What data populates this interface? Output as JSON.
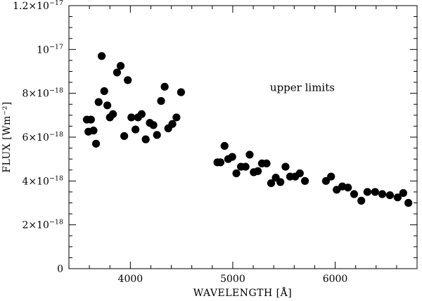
{
  "chart_data": {
    "type": "scatter",
    "title": "",
    "xlabel": "WAVELENGTH [Å]",
    "ylabel": "FLUX [Wm⁻²]",
    "xlim": [
      3400,
      6800
    ],
    "ylim": [
      0,
      1.2e-17
    ],
    "x_major_ticks": [
      4000,
      5000,
      6000
    ],
    "x_minor_step": 200,
    "y_major_ticks": [
      0,
      2e-18,
      4e-18,
      6e-18,
      8e-18,
      1e-17,
      1.2e-17
    ],
    "y_minor_step": 5e-19,
    "x_tick_labels": [
      "4000",
      "5000",
      "6000"
    ],
    "y_tick_labels": [
      {
        "mant": "0",
        "exp": ""
      },
      {
        "mant": "2×10",
        "exp": "−18"
      },
      {
        "mant": "4×10",
        "exp": "−18"
      },
      {
        "mant": "6×10",
        "exp": "−18"
      },
      {
        "mant": "8×10",
        "exp": "−18"
      },
      {
        "mant": "10",
        "exp": "−17"
      },
      {
        "mant": "1.2×10",
        "exp": "−17"
      }
    ],
    "annotation": "upper limits",
    "annotation_position": {
      "x": 5680,
      "y": 8.1e-18
    },
    "grid": false,
    "marker": "filled-circle",
    "points": [
      [
        3575,
        6.8e-18
      ],
      [
        3590,
        6.25e-18
      ],
      [
        3615,
        6.8e-18
      ],
      [
        3640,
        6.3e-18
      ],
      [
        3665,
        5.7e-18
      ],
      [
        3690,
        7.6e-18
      ],
      [
        3720,
        9.7e-18
      ],
      [
        3745,
        8.1e-18
      ],
      [
        3775,
        7.45e-18
      ],
      [
        3800,
        6.9e-18
      ],
      [
        3830,
        7.05e-18
      ],
      [
        3870,
        8.95e-18
      ],
      [
        3905,
        9.25e-18
      ],
      [
        3940,
        6.05e-18
      ],
      [
        3975,
        8.6e-18
      ],
      [
        4010,
        6.9e-18
      ],
      [
        4050,
        6.35e-18
      ],
      [
        4075,
        6.9e-18
      ],
      [
        4110,
        7.05e-18
      ],
      [
        4150,
        5.9e-18
      ],
      [
        4190,
        6.65e-18
      ],
      [
        4225,
        6.55e-18
      ],
      [
        4260,
        6.1e-18
      ],
      [
        4300,
        7.65e-18
      ],
      [
        4335,
        8.3e-18
      ],
      [
        4370,
        6.4e-18
      ],
      [
        4410,
        6.6e-18
      ],
      [
        4450,
        6.9e-18
      ],
      [
        4495,
        8.05e-18
      ],
      [
        4850,
        4.85e-18
      ],
      [
        4880,
        4.85e-18
      ],
      [
        4920,
        5.6e-18
      ],
      [
        4955,
        5e-18
      ],
      [
        4995,
        5.1e-18
      ],
      [
        5035,
        4.35e-18
      ],
      [
        5080,
        4.65e-18
      ],
      [
        5125,
        4.65e-18
      ],
      [
        5165,
        5.2e-18
      ],
      [
        5205,
        4.4e-18
      ],
      [
        5245,
        4.45e-18
      ],
      [
        5285,
        4.8e-18
      ],
      [
        5330,
        4.8e-18
      ],
      [
        5375,
        3.9e-18
      ],
      [
        5420,
        4.15e-18
      ],
      [
        5465,
        3.95e-18
      ],
      [
        5515,
        4.65e-18
      ],
      [
        5560,
        4.2e-18
      ],
      [
        5610,
        4.2e-18
      ],
      [
        5655,
        4.35e-18
      ],
      [
        5705,
        4e-18
      ],
      [
        5910,
        4e-18
      ],
      [
        5960,
        4.2e-18
      ],
      [
        6015,
        3.6e-18
      ],
      [
        6070,
        3.75e-18
      ],
      [
        6125,
        3.7e-18
      ],
      [
        6185,
        3.4e-18
      ],
      [
        6255,
        3.1e-18
      ],
      [
        6315,
        3.5e-18
      ],
      [
        6390,
        3.5e-18
      ],
      [
        6460,
        3.4e-18
      ],
      [
        6535,
        3.35e-18
      ],
      [
        6610,
        3.25e-18
      ],
      [
        6665,
        3.45e-18
      ],
      [
        6715,
        3e-18
      ]
    ]
  }
}
